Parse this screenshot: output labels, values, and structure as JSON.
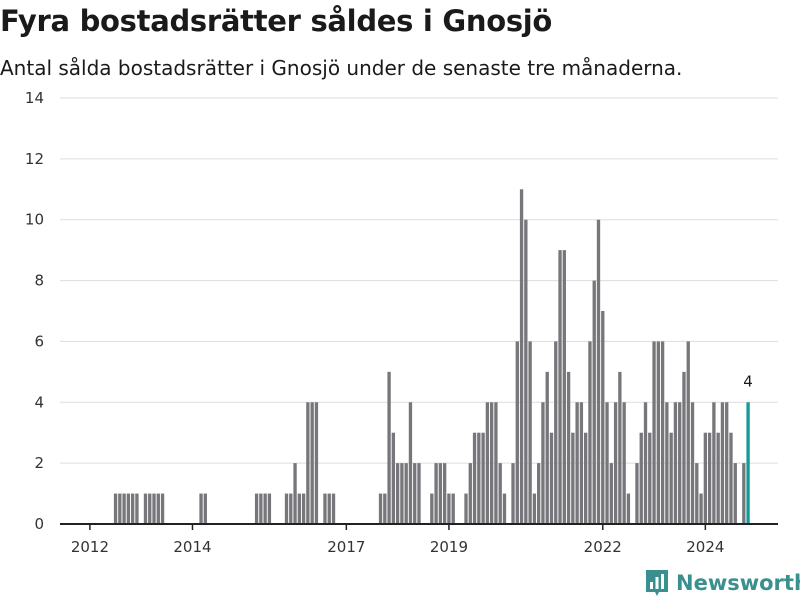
{
  "title": "Fyra bostadsrätter såldes i Gnosjö",
  "subtitle": "Antal sålda bostadsrätter i Gnosjö under de senaste tre månaderna.",
  "brand": "Newsworthy",
  "colors": {
    "bar": "#77767b",
    "highlight": "#159a96",
    "grid": "#dddddd",
    "axis": "#222222",
    "brand": "#3a8f8f"
  },
  "chart_data": {
    "type": "bar",
    "title": "Fyra bostadsrätter såldes i Gnosjö",
    "subtitle": "Antal sålda bostadsrätter i Gnosjö under de senaste tre månaderna.",
    "xlabel": "",
    "ylabel": "",
    "ylim": [
      0,
      14
    ],
    "yticks": [
      0,
      2,
      4,
      6,
      8,
      10,
      12,
      14
    ],
    "grid": true,
    "x_start": "2011-06",
    "x_end": "2025-06",
    "xticks": [
      {
        "date": "2012-01",
        "label": "2012"
      },
      {
        "date": "2014-01",
        "label": "2014"
      },
      {
        "date": "2017-01",
        "label": "2017"
      },
      {
        "date": "2019-01",
        "label": "2019"
      },
      {
        "date": "2022-01",
        "label": "2022"
      },
      {
        "date": "2024-01",
        "label": "2024"
      }
    ],
    "annotation": {
      "date": "2024-11",
      "text": "4"
    },
    "series": [
      {
        "points": [
          {
            "x": "2012-07",
            "y": 1
          },
          {
            "x": "2012-08",
            "y": 1
          },
          {
            "x": "2012-09",
            "y": 1
          },
          {
            "x": "2012-10",
            "y": 1
          },
          {
            "x": "2012-11",
            "y": 1
          },
          {
            "x": "2012-12",
            "y": 1
          },
          {
            "x": "2013-02",
            "y": 1
          },
          {
            "x": "2013-03",
            "y": 1
          },
          {
            "x": "2013-04",
            "y": 1
          },
          {
            "x": "2013-05",
            "y": 1
          },
          {
            "x": "2013-06",
            "y": 1
          },
          {
            "x": "2014-03",
            "y": 1
          },
          {
            "x": "2014-04",
            "y": 1
          },
          {
            "x": "2015-04",
            "y": 1
          },
          {
            "x": "2015-05",
            "y": 1
          },
          {
            "x": "2015-06",
            "y": 1
          },
          {
            "x": "2015-07",
            "y": 1
          },
          {
            "x": "2015-11",
            "y": 1
          },
          {
            "x": "2015-12",
            "y": 1
          },
          {
            "x": "2016-01",
            "y": 2
          },
          {
            "x": "2016-02",
            "y": 1
          },
          {
            "x": "2016-03",
            "y": 1
          },
          {
            "x": "2016-04",
            "y": 4
          },
          {
            "x": "2016-05",
            "y": 4
          },
          {
            "x": "2016-06",
            "y": 4
          },
          {
            "x": "2016-08",
            "y": 1
          },
          {
            "x": "2016-09",
            "y": 1
          },
          {
            "x": "2016-10",
            "y": 1
          },
          {
            "x": "2017-09",
            "y": 1
          },
          {
            "x": "2017-10",
            "y": 1
          },
          {
            "x": "2017-11",
            "y": 5
          },
          {
            "x": "2017-12",
            "y": 3
          },
          {
            "x": "2018-01",
            "y": 2
          },
          {
            "x": "2018-02",
            "y": 2
          },
          {
            "x": "2018-03",
            "y": 2
          },
          {
            "x": "2018-04",
            "y": 4
          },
          {
            "x": "2018-05",
            "y": 2
          },
          {
            "x": "2018-06",
            "y": 2
          },
          {
            "x": "2018-09",
            "y": 1
          },
          {
            "x": "2018-10",
            "y": 2
          },
          {
            "x": "2018-11",
            "y": 2
          },
          {
            "x": "2018-12",
            "y": 2
          },
          {
            "x": "2019-01",
            "y": 1
          },
          {
            "x": "2019-02",
            "y": 1
          },
          {
            "x": "2019-05",
            "y": 1
          },
          {
            "x": "2019-06",
            "y": 2
          },
          {
            "x": "2019-07",
            "y": 3
          },
          {
            "x": "2019-08",
            "y": 3
          },
          {
            "x": "2019-09",
            "y": 3
          },
          {
            "x": "2019-10",
            "y": 4
          },
          {
            "x": "2019-11",
            "y": 4
          },
          {
            "x": "2019-12",
            "y": 4
          },
          {
            "x": "2020-01",
            "y": 2
          },
          {
            "x": "2020-02",
            "y": 1
          },
          {
            "x": "2020-04",
            "y": 2
          },
          {
            "x": "2020-05",
            "y": 6
          },
          {
            "x": "2020-06",
            "y": 11
          },
          {
            "x": "2020-07",
            "y": 10
          },
          {
            "x": "2020-08",
            "y": 6
          },
          {
            "x": "2020-09",
            "y": 1
          },
          {
            "x": "2020-10",
            "y": 2
          },
          {
            "x": "2020-11",
            "y": 4
          },
          {
            "x": "2020-12",
            "y": 5
          },
          {
            "x": "2021-01",
            "y": 3
          },
          {
            "x": "2021-02",
            "y": 6
          },
          {
            "x": "2021-03",
            "y": 9
          },
          {
            "x": "2021-04",
            "y": 9
          },
          {
            "x": "2021-05",
            "y": 5
          },
          {
            "x": "2021-06",
            "y": 3
          },
          {
            "x": "2021-07",
            "y": 4
          },
          {
            "x": "2021-08",
            "y": 4
          },
          {
            "x": "2021-09",
            "y": 3
          },
          {
            "x": "2021-10",
            "y": 6
          },
          {
            "x": "2021-11",
            "y": 8
          },
          {
            "x": "2021-12",
            "y": 10
          },
          {
            "x": "2022-01",
            "y": 7
          },
          {
            "x": "2022-02",
            "y": 4
          },
          {
            "x": "2022-03",
            "y": 2
          },
          {
            "x": "2022-04",
            "y": 4
          },
          {
            "x": "2022-05",
            "y": 5
          },
          {
            "x": "2022-06",
            "y": 4
          },
          {
            "x": "2022-07",
            "y": 1
          },
          {
            "x": "2022-09",
            "y": 2
          },
          {
            "x": "2022-10",
            "y": 3
          },
          {
            "x": "2022-11",
            "y": 4
          },
          {
            "x": "2022-12",
            "y": 3
          },
          {
            "x": "2023-01",
            "y": 6
          },
          {
            "x": "2023-02",
            "y": 6
          },
          {
            "x": "2023-03",
            "y": 6
          },
          {
            "x": "2023-04",
            "y": 4
          },
          {
            "x": "2023-05",
            "y": 3
          },
          {
            "x": "2023-06",
            "y": 4
          },
          {
            "x": "2023-07",
            "y": 4
          },
          {
            "x": "2023-08",
            "y": 5
          },
          {
            "x": "2023-09",
            "y": 6
          },
          {
            "x": "2023-10",
            "y": 4
          },
          {
            "x": "2023-11",
            "y": 2
          },
          {
            "x": "2023-12",
            "y": 1
          },
          {
            "x": "2024-01",
            "y": 3
          },
          {
            "x": "2024-02",
            "y": 3
          },
          {
            "x": "2024-03",
            "y": 4
          },
          {
            "x": "2024-04",
            "y": 3
          },
          {
            "x": "2024-05",
            "y": 4
          },
          {
            "x": "2024-06",
            "y": 4
          },
          {
            "x": "2024-07",
            "y": 3
          },
          {
            "x": "2024-08",
            "y": 2
          },
          {
            "x": "2024-10",
            "y": 2
          },
          {
            "x": "2024-11",
            "y": 4
          }
        ]
      }
    ]
  }
}
